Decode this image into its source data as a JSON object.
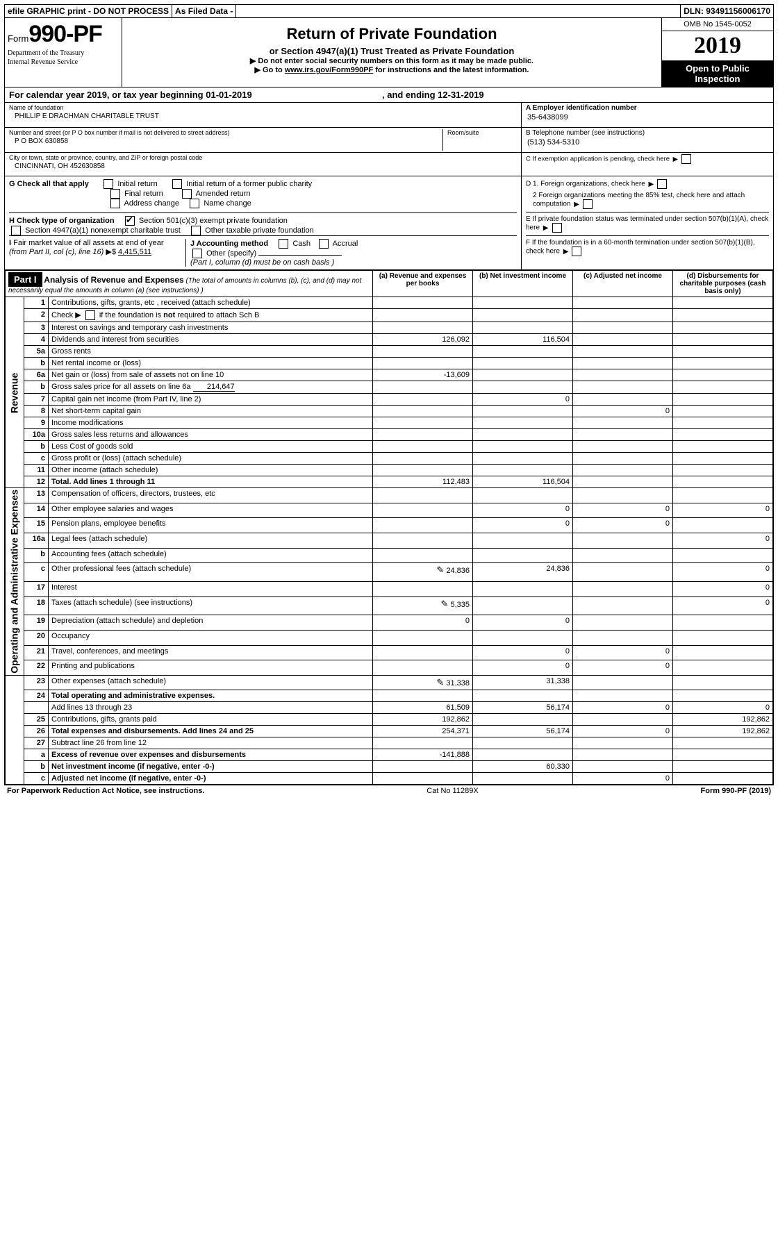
{
  "topbar": {
    "efile": "efile GRAPHIC print - DO NOT PROCESS",
    "asFiled": "As Filed Data -",
    "dln": "DLN: 93491156006170"
  },
  "header": {
    "formPrefix": "Form",
    "formNo": "990-PF",
    "dept1": "Department of the Treasury",
    "dept2": "Internal Revenue Service",
    "title": "Return of Private Foundation",
    "subtitle": "or Section 4947(a)(1) Trust Treated as Private Foundation",
    "instr1": "▶ Do not enter social security numbers on this form as it may be made public.",
    "instr2": "▶ Go to www.irs.gov/Form990PF for instructions and the latest information.",
    "instrLink": "www.irs.gov/Form990PF",
    "omb": "OMB No 1545-0052",
    "year": "2019",
    "inspection": "Open to Public Inspection"
  },
  "calYear": {
    "prefix": "For calendar year 2019, or tax year beginning ",
    "begin": "01-01-2019",
    "mid": " , and ending ",
    "end": "12-31-2019"
  },
  "info": {
    "nameLabel": "Name of foundation",
    "name": "PHILLIP E DRACHMAN CHARITABLE TRUST",
    "einLabel": "A Employer identification number",
    "ein": "35-6438099",
    "addrLabel": "Number and street (or P O  box number if mail is not delivered to street address)",
    "roomLabel": "Room/suite",
    "addr": "P O BOX 630858",
    "phoneLabel": "B Telephone number (see instructions)",
    "phone": "(513) 534-5310",
    "cityLabel": "City or town, state or province, country, and ZIP or foreign postal code",
    "city": "CINCINNATI, OH  452630858",
    "cLabel": "C If exemption application is pending, check here"
  },
  "sectionG": {
    "label": "G Check all that apply",
    "opts": [
      "Initial return",
      "Initial return of a former public charity",
      "Final return",
      "Amended return",
      "Address change",
      "Name change"
    ]
  },
  "sectionH": {
    "label": "H Check type of organization",
    "opt1": "Section 501(c)(3) exempt private foundation",
    "opt2": "Section 4947(a)(1) nonexempt charitable trust",
    "opt3": "Other taxable private foundation"
  },
  "sectionI": {
    "label": "I Fair market value of all assets at end of year (from Part II, col  (c), line 16) ▶$ ",
    "value": "4,415,511"
  },
  "sectionJ": {
    "label": "J Accounting method",
    "opts": [
      "Cash",
      "Accrual"
    ],
    "other": "Other (specify)",
    "note": "(Part I, column (d) must be on cash basis )"
  },
  "sectionD": {
    "d1": "D 1. Foreign organizations, check here",
    "d2": "2  Foreign organizations meeting the 85% test, check here and attach computation",
    "e": "E  If private foundation status was terminated under section 507(b)(1)(A), check here",
    "f": "F  If the foundation is in a 60-month termination under section 507(b)(1)(B), check here"
  },
  "part1": {
    "label": "Part I",
    "title": "Analysis of Revenue and Expenses",
    "titleNote": " (The total of amounts in columns (b), (c), and (d) may not necessarily equal the amounts in column (a) (see instructions) )",
    "cols": {
      "a": "(a) Revenue and expenses per books",
      "b": "(b) Net investment income",
      "c": "(c) Adjusted net income",
      "d": "(d) Disbursements for charitable purposes (cash basis only)"
    }
  },
  "vertLabels": {
    "revenue": "Revenue",
    "expenses": "Operating and Administrative Expenses"
  },
  "rows": [
    {
      "n": "1",
      "desc": "Contributions, gifts, grants, etc , received (attach schedule)"
    },
    {
      "n": "2",
      "desc": "Check ▶ ☐ if the foundation is not required to attach Sch  B"
    },
    {
      "n": "3",
      "desc": "Interest on savings and temporary cash investments"
    },
    {
      "n": "4",
      "desc": "Dividends and interest from securities",
      "a": "126,092",
      "b": "116,504"
    },
    {
      "n": "5a",
      "desc": "Gross rents"
    },
    {
      "n": "b",
      "desc": "Net rental income or (loss)"
    },
    {
      "n": "6a",
      "desc": "Net gain or (loss) from sale of assets not on line 10",
      "a": "-13,609"
    },
    {
      "n": "b",
      "desc": "Gross sales price for all assets on line 6a",
      "inline": "214,647"
    },
    {
      "n": "7",
      "desc": "Capital gain net income (from Part IV, line 2)",
      "b": "0"
    },
    {
      "n": "8",
      "desc": "Net short-term capital gain",
      "c": "0"
    },
    {
      "n": "9",
      "desc": "Income modifications"
    },
    {
      "n": "10a",
      "desc": "Gross sales less returns and allowances"
    },
    {
      "n": "b",
      "desc": "Less  Cost of goods sold"
    },
    {
      "n": "c",
      "desc": "Gross profit or (loss) (attach schedule)"
    },
    {
      "n": "11",
      "desc": "Other income (attach schedule)"
    },
    {
      "n": "12",
      "desc": "Total. Add lines 1 through 11",
      "bold": true,
      "a": "112,483",
      "b": "116,504"
    },
    {
      "n": "13",
      "desc": "Compensation of officers, directors, trustees, etc"
    },
    {
      "n": "14",
      "desc": "Other employee salaries and wages",
      "b": "0",
      "c": "0",
      "d": "0"
    },
    {
      "n": "15",
      "desc": "Pension plans, employee benefits",
      "b": "0",
      "c": "0"
    },
    {
      "n": "16a",
      "desc": "Legal fees (attach schedule)",
      "d": "0"
    },
    {
      "n": "b",
      "desc": "Accounting fees (attach schedule)"
    },
    {
      "n": "c",
      "desc": "Other professional fees (attach schedule)",
      "icon": true,
      "a": "24,836",
      "b": "24,836",
      "d": "0"
    },
    {
      "n": "17",
      "desc": "Interest",
      "d": "0"
    },
    {
      "n": "18",
      "desc": "Taxes (attach schedule) (see instructions)",
      "icon": true,
      "a": "5,335",
      "d": "0"
    },
    {
      "n": "19",
      "desc": "Depreciation (attach schedule) and depletion",
      "a": "0",
      "b": "0"
    },
    {
      "n": "20",
      "desc": "Occupancy"
    },
    {
      "n": "21",
      "desc": "Travel, conferences, and meetings",
      "b": "0",
      "c": "0"
    },
    {
      "n": "22",
      "desc": "Printing and publications",
      "b": "0",
      "c": "0"
    },
    {
      "n": "23",
      "desc": "Other expenses (attach schedule)",
      "icon": true,
      "a": "31,338",
      "b": "31,338"
    },
    {
      "n": "24",
      "desc": "Total operating and administrative expenses.",
      "bold": true
    },
    {
      "n": "",
      "desc": "Add lines 13 through 23",
      "a": "61,509",
      "b": "56,174",
      "c": "0",
      "d": "0"
    },
    {
      "n": "25",
      "desc": "Contributions, gifts, grants paid",
      "a": "192,862",
      "d": "192,862"
    },
    {
      "n": "26",
      "desc": "Total expenses and disbursements. Add lines 24 and 25",
      "bold": true,
      "a": "254,371",
      "b": "56,174",
      "c": "0",
      "d": "192,862"
    },
    {
      "n": "27",
      "desc": "Subtract line 26 from line 12"
    },
    {
      "n": "a",
      "desc": "Excess of revenue over expenses and disbursements",
      "bold": true,
      "a": "-141,888"
    },
    {
      "n": "b",
      "desc": "Net investment income (if negative, enter -0-)",
      "bold": true,
      "b": "60,330"
    },
    {
      "n": "c",
      "desc": "Adjusted net income (if negative, enter -0-)",
      "bold": true,
      "c": "0"
    }
  ],
  "footer": {
    "left": "For Paperwork Reduction Act Notice, see instructions.",
    "mid": "Cat  No  11289X",
    "right": "Form 990-PF (2019)"
  }
}
